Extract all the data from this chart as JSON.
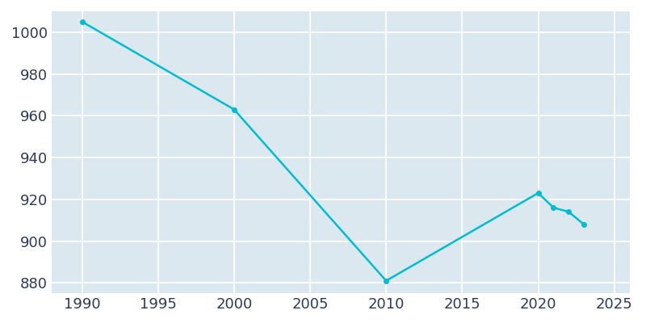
{
  "years": [
    1990,
    2000,
    2010,
    2020,
    2021,
    2022,
    2023
  ],
  "population": [
    1005,
    963,
    881,
    923,
    916,
    914,
    908
  ],
  "line_color": "#00bcd4",
  "axes_background_color": "#dce8f0",
  "figure_background_color": "#ffffff",
  "grid_color": "#ffffff",
  "text_color": "#2d3a5c",
  "xlim": [
    1988,
    2026
  ],
  "ylim": [
    875,
    1010
  ],
  "xticks": [
    1990,
    1995,
    2000,
    2005,
    2010,
    2015,
    2020,
    2025
  ],
  "yticks": [
    880,
    900,
    920,
    940,
    960,
    980,
    1000
  ],
  "marker_size": 4,
  "line_width": 1.8,
  "tick_fontsize": 13,
  "tick_color": "#2d3a5c"
}
